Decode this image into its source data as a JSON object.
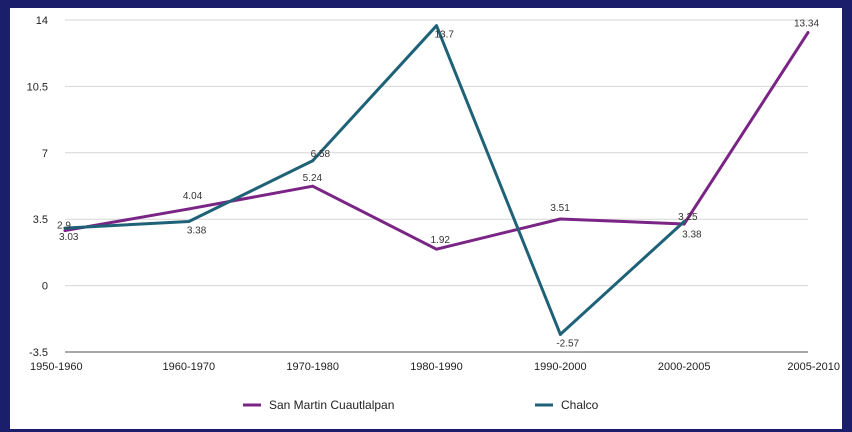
{
  "chart_data": {
    "type": "line",
    "categories": [
      "1950-1960",
      "1960-1970",
      "1970-1980",
      "1980-1990",
      "1990-2000",
      "2000-2005",
      "2005-2010"
    ],
    "ylim": [
      -3.5,
      14
    ],
    "yticks": [
      "14",
      "10.5",
      "7",
      "3.5",
      "0",
      "-3.5"
    ],
    "grid": true,
    "legend_position": "bottom",
    "series": [
      {
        "name": "San Martin Cuautlalpan",
        "color": "#7a2585",
        "values": [
          2.9,
          4.04,
          5.24,
          1.92,
          3.51,
          3.25,
          13.34
        ],
        "labels": [
          "2.9",
          "4.04",
          "5.24",
          "1.92",
          "3.51",
          "3.25",
          "13.34"
        ]
      },
      {
        "name": "Chalco",
        "color": "#1f6278",
        "values": [
          3.03,
          3.38,
          6.58,
          13.7,
          -2.57,
          3.38,
          null
        ],
        "labels": [
          "3.03",
          "3.38",
          "6.58",
          "13.7",
          "-2.57",
          "3.38",
          ""
        ]
      }
    ]
  }
}
